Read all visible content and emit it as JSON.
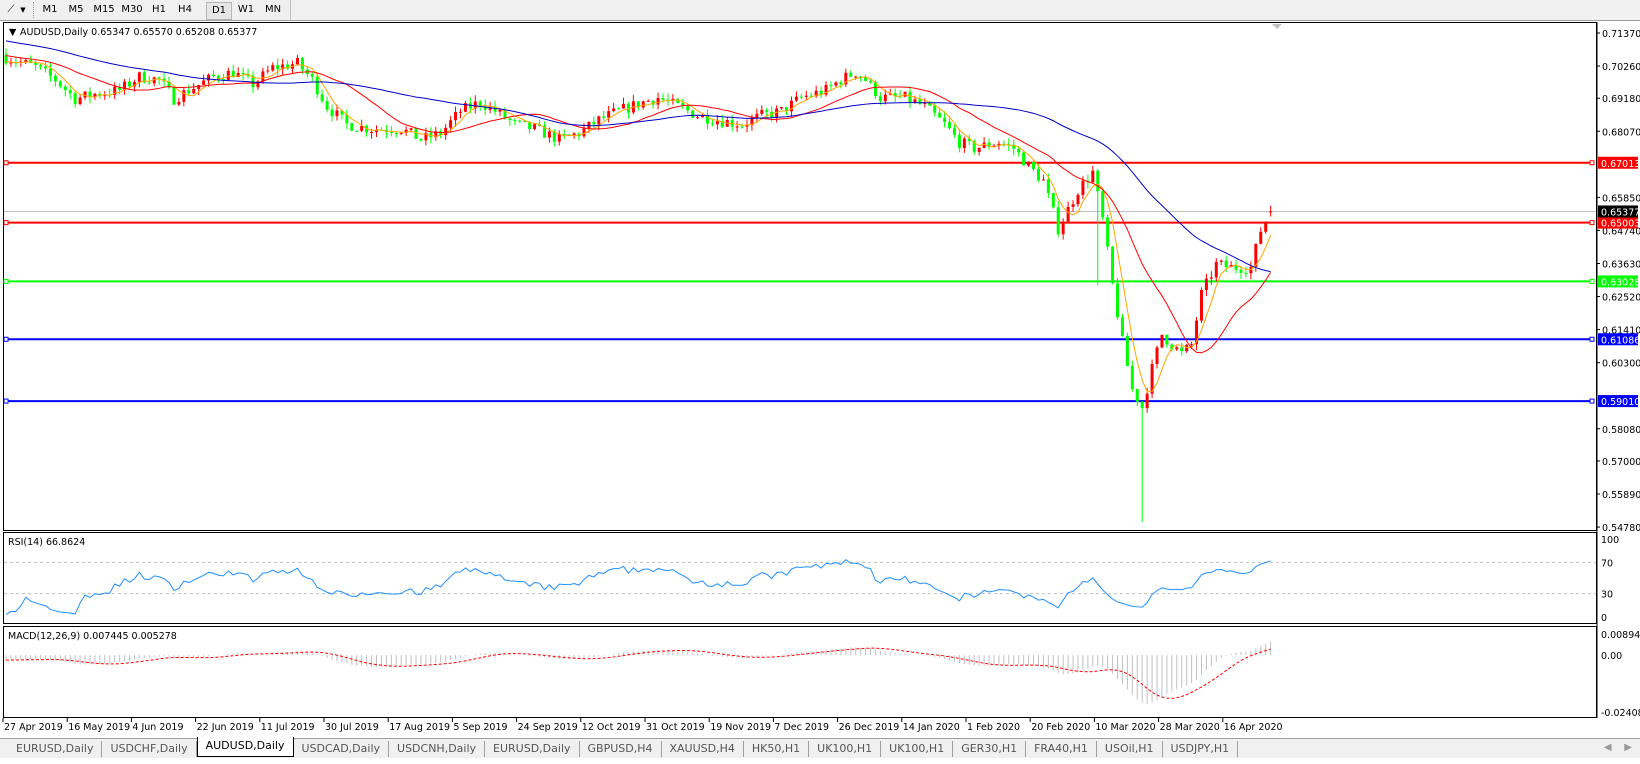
{
  "toolbar": {
    "draw_tool_icon": "line-studies-icon",
    "timeframes": [
      {
        "label": "M1",
        "active": false
      },
      {
        "label": "M5",
        "active": false
      },
      {
        "label": "M15",
        "active": false
      },
      {
        "label": "M30",
        "active": false
      },
      {
        "label": "H1",
        "active": false
      },
      {
        "label": "H4",
        "active": false
      },
      {
        "label": "D1",
        "active": true
      },
      {
        "label": "W1",
        "active": false
      },
      {
        "label": "MN",
        "active": false
      }
    ]
  },
  "main_chart": {
    "header": "AUDUSD,Daily  0.65347 0.65570 0.65208 0.65377",
    "current_price": "0.65377",
    "colors": {
      "up_candle": "#ff0000",
      "down_candle": "#00ff00",
      "ma_fast": "#ffa500",
      "ma_mid": "#ff0000",
      "ma_slow": "#0000c8"
    }
  },
  "chart_data": [
    {
      "type": "candlestick",
      "title": "AUDUSD,Daily",
      "last_bar": {
        "open": 0.65347,
        "high": 0.6557,
        "low": 0.65208,
        "close": 0.65377
      },
      "x_tick_labels": [
        "27 Apr 2019",
        "16 May 2019",
        "4 Jun 2019",
        "22 Jun 2019",
        "11 Jul 2019",
        "30 Jul 2019",
        "17 Aug 2019",
        "5 Sep 2019",
        "24 Sep 2019",
        "12 Oct 2019",
        "31 Oct 2019",
        "19 Nov 2019",
        "7 Dec 2019",
        "26 Dec 2019",
        "14 Jan 2020",
        "1 Feb 2020",
        "20 Feb 2020",
        "10 Mar 2020",
        "28 Mar 2020",
        "16 Apr 2020"
      ],
      "y_tick_labels": [
        "0.71370",
        "0.70260",
        "0.69180",
        "0.68070",
        "0.65850",
        "0.64740",
        "0.63630",
        "0.62520",
        "0.61410",
        "0.60300",
        "0.58080",
        "0.57000",
        "0.55890",
        "0.54780"
      ],
      "ylim": [
        0.5478,
        0.7137
      ],
      "close_anchors_by_bar": [
        [
          0,
          0.7055
        ],
        [
          6,
          0.7023
        ],
        [
          10,
          0.698
        ],
        [
          14,
          0.6916
        ],
        [
          18,
          0.6932
        ],
        [
          23,
          0.6945
        ],
        [
          27,
          0.699
        ],
        [
          31,
          0.698
        ],
        [
          34,
          0.6916
        ],
        [
          37,
          0.6945
        ],
        [
          42,
          0.699
        ],
        [
          46,
          0.7005
        ],
        [
          50,
          0.6965
        ],
        [
          54,
          0.702
        ],
        [
          59,
          0.7035
        ],
        [
          62,
          0.698
        ],
        [
          65,
          0.689
        ],
        [
          69,
          0.683
        ],
        [
          74,
          0.6815
        ],
        [
          80,
          0.6815
        ],
        [
          84,
          0.678
        ],
        [
          88,
          0.68
        ],
        [
          92,
          0.6875
        ],
        [
          96,
          0.6905
        ],
        [
          99,
          0.6875
        ],
        [
          103,
          0.683
        ],
        [
          107,
          0.6815
        ],
        [
          112,
          0.678
        ],
        [
          116,
          0.68
        ],
        [
          120,
          0.6845
        ],
        [
          124,
          0.6875
        ],
        [
          129,
          0.6905
        ],
        [
          132,
          0.692
        ],
        [
          136,
          0.689
        ],
        [
          140,
          0.686
        ],
        [
          144,
          0.6845
        ],
        [
          149,
          0.683
        ],
        [
          153,
          0.686
        ],
        [
          157,
          0.6875
        ],
        [
          161,
          0.692
        ],
        [
          166,
          0.6945
        ],
        [
          169,
          0.698
        ],
        [
          172,
          0.7005
        ],
        [
          174,
          0.698
        ],
        [
          177,
          0.692
        ],
        [
          182,
          0.692
        ],
        [
          186,
          0.689
        ],
        [
          190,
          0.683
        ],
        [
          193,
          0.677
        ],
        [
          196,
          0.675
        ],
        [
          201,
          0.677
        ],
        [
          204,
          0.675
        ],
        [
          207,
          0.669
        ],
        [
          210,
          0.664
        ],
        [
          213,
          0.648
        ],
        [
          217,
          0.661
        ],
        [
          220,
          0.667
        ],
        [
          222,
          0.651
        ],
        [
          224,
          0.629
        ],
        [
          226,
          0.61
        ],
        [
          228,
          0.594
        ],
        [
          230,
          0.588
        ],
        [
          232,
          0.601
        ],
        [
          234,
          0.6125
        ],
        [
          236,
          0.609
        ],
        [
          238,
          0.606
        ],
        [
          240,
          0.609
        ],
        [
          242,
          0.626
        ],
        [
          245,
          0.636
        ],
        [
          248,
          0.635
        ],
        [
          252,
          0.635
        ],
        [
          254,
          0.6475
        ],
        [
          256,
          0.65377
        ]
      ],
      "period_low": 0.5495,
      "horizontal_levels": [
        {
          "label": "0.67013",
          "value": 0.67013,
          "color": "#ff0000"
        },
        {
          "label": "0.65003",
          "value": 0.65003,
          "color": "#ff0000"
        },
        {
          "label": "0.63028",
          "value": 0.63028,
          "color": "#00ff00"
        },
        {
          "label": "0.61086",
          "value": 0.61086,
          "color": "#0000ff"
        },
        {
          "label": "0.59010",
          "value": 0.5901,
          "color": "#0000ff"
        }
      ]
    },
    {
      "type": "line",
      "title": "RSI(14) 66.8624",
      "ylim": [
        0,
        100
      ],
      "y_tick_labels": [
        "100",
        "70",
        "30",
        "0"
      ],
      "levels": [
        70,
        30
      ],
      "color": "#1e90ff"
    },
    {
      "type": "bar",
      "title": "MACD(12,26,9) 0.007445 0.005278",
      "ylim": [
        -0.024088,
        0.008946
      ],
      "y_tick_labels": [
        "0.008946",
        "0.00",
        "-0.024088"
      ],
      "histogram_color": "#c0c0c0",
      "signal_color": "#ff0000"
    }
  ],
  "tabs": [
    {
      "label": "EURUSD,Daily",
      "active": false
    },
    {
      "label": "USDCHF,Daily",
      "active": false
    },
    {
      "label": "AUDUSD,Daily",
      "active": true
    },
    {
      "label": "USDCAD,Daily",
      "active": false
    },
    {
      "label": "USDCNH,Daily",
      "active": false
    },
    {
      "label": "EURUSD,Daily",
      "active": false
    },
    {
      "label": "GBPUSD,H4",
      "active": false
    },
    {
      "label": "XAUUSD,H4",
      "active": false
    },
    {
      "label": "HK50,H1",
      "active": false
    },
    {
      "label": "UK100,H1",
      "active": false
    },
    {
      "label": "UK100,H1",
      "active": false
    },
    {
      "label": "GER30,H1",
      "active": false
    },
    {
      "label": "FRA40,H1",
      "active": false
    },
    {
      "label": "USOil,H1",
      "active": false
    },
    {
      "label": "USDJPY,H1",
      "active": false
    }
  ],
  "tab_scroll": {
    "left": "◀",
    "right": "▶"
  }
}
